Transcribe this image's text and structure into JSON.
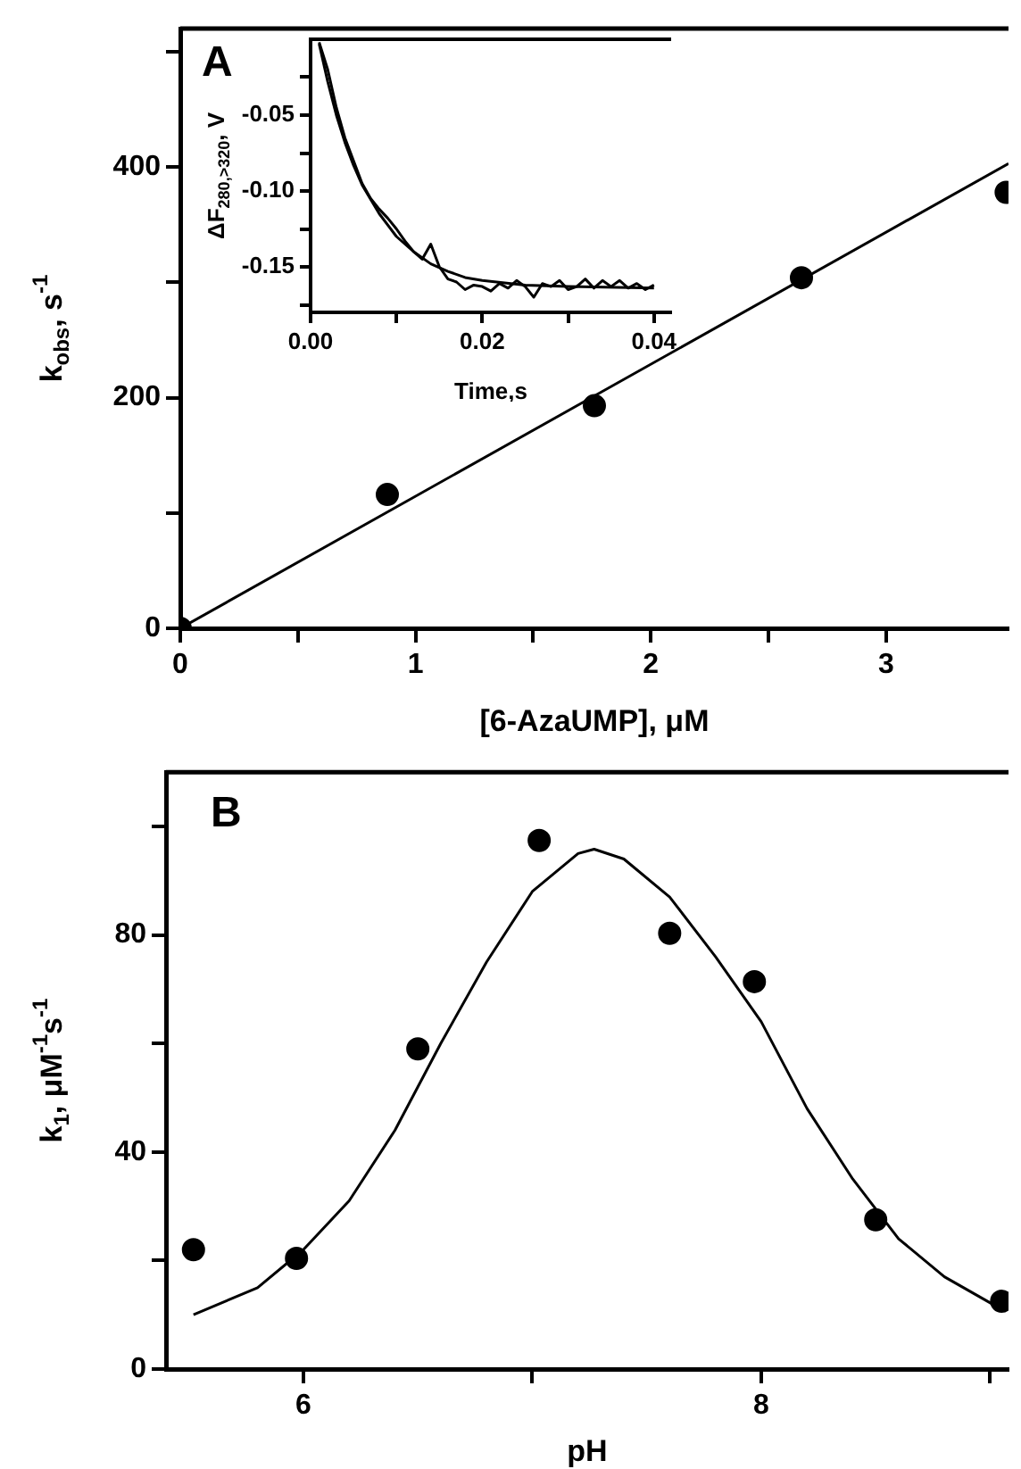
{
  "chart_data": [
    {
      "type": "scatter",
      "xlabel": "[6-AzaUMP], μM",
      "ylabel": "k$_{obs}$, s$^{-1}$",
      "annotations": [
        "A"
      ],
      "xlim": [
        0,
        3.52
      ],
      "ylim": [
        0,
        520
      ],
      "xticks": [
        0,
        {
          "value": 0.5,
          "label": null
        },
        1,
        {
          "value": 1.5,
          "label": null
        },
        2,
        {
          "value": 2.5,
          "label": null
        },
        3
      ],
      "yticks": [
        0,
        {
          "value": 100,
          "label": null
        },
        200,
        {
          "value": 300,
          "label": null
        },
        400,
        {
          "value": 500,
          "label": null
        }
      ],
      "grid": false,
      "legend": false,
      "series": [
        {
          "color": "#000000",
          "marker": "circle",
          "x": [
            0,
            0.88,
            1.76,
            2.64,
            3.51
          ],
          "values": [
            0,
            116,
            193,
            304,
            378
          ]
        },
        {
          "type": "line",
          "color": "#000000",
          "marker": "none",
          "line_style": "solid",
          "x": [
            0,
            3.52
          ],
          "values": [
            0,
            403
          ]
        }
      ]
    },
    {
      "type": "line",
      "xlabel": "Time,s",
      "ylabel": "ΔF$_{280,>320}$, V",
      "xlim": [
        0,
        0.042
      ],
      "ylim": [
        -0.18,
        0
      ],
      "xticks": [
        {
          "value": 0,
          "label": "0.00"
        },
        {
          "value": 0.01,
          "label": null
        },
        0.02,
        {
          "value": 0.03,
          "label": null
        },
        0.04
      ],
      "yticks": [
        {
          "value": -0.175,
          "label": null
        },
        -0.15,
        {
          "value": -0.125,
          "label": null
        },
        {
          "value": -0.1,
          "label": "-0.10"
        },
        {
          "value": -0.075,
          "label": null
        },
        -0.05,
        {
          "value": -0.025,
          "label": null
        }
      ],
      "grid": false,
      "legend": false,
      "series": [
        {
          "color": "#000000",
          "marker": "none",
          "line_style": "solid",
          "x": [
            0.001,
            0.002,
            0.003,
            0.004,
            0.005,
            0.006,
            0.007,
            0.008,
            0.009,
            0.01,
            0.011,
            0.012,
            0.013,
            0.014,
            0.015,
            0.016,
            0.017,
            0.018,
            0.019,
            0.02,
            0.021,
            0.022,
            0.023,
            0.024,
            0.025,
            0.026,
            0.027,
            0.028,
            0.029,
            0.03,
            0.031,
            0.032,
            0.033,
            0.034,
            0.035,
            0.036,
            0.037,
            0.038,
            0.039,
            0.04
          ],
          "values": [
            -0.002,
            -0.02,
            -0.045,
            -0.065,
            -0.08,
            -0.095,
            -0.105,
            -0.112,
            -0.118,
            -0.125,
            -0.133,
            -0.14,
            -0.145,
            -0.135,
            -0.15,
            -0.158,
            -0.16,
            -0.165,
            -0.162,
            -0.163,
            -0.166,
            -0.161,
            -0.164,
            -0.159,
            -0.163,
            -0.17,
            -0.161,
            -0.163,
            -0.159,
            -0.165,
            -0.163,
            -0.158,
            -0.164,
            -0.159,
            -0.163,
            -0.159,
            -0.164,
            -0.161,
            -0.165,
            -0.162
          ]
        },
        {
          "color": "#000000",
          "marker": "none",
          "line_style": "solid",
          "x": [
            0.001,
            0.002,
            0.003,
            0.004,
            0.005,
            0.006,
            0.008,
            0.01,
            0.012,
            0.014,
            0.016,
            0.018,
            0.02,
            0.025,
            0.03,
            0.04
          ],
          "values": [
            -0.003,
            -0.028,
            -0.05,
            -0.068,
            -0.083,
            -0.096,
            -0.115,
            -0.13,
            -0.14,
            -0.148,
            -0.153,
            -0.157,
            -0.159,
            -0.162,
            -0.163,
            -0.164
          ]
        }
      ]
    },
    {
      "type": "scatter",
      "xlabel": "pH",
      "ylabel": "k$_{1}$, μM$^{-1}$s$^{-1}$",
      "annotations": [
        "B"
      ],
      "xlim": [
        5.4,
        9.08
      ],
      "ylim": [
        0,
        110
      ],
      "xticks": [
        6,
        {
          "value": 7,
          "label": null
        },
        8,
        {
          "value": 9,
          "label": null
        }
      ],
      "yticks": [
        0,
        {
          "value": 20,
          "label": null
        },
        40,
        {
          "value": 60,
          "label": null
        },
        80,
        {
          "value": 100,
          "label": null
        }
      ],
      "grid": false,
      "legend": false,
      "series": [
        {
          "color": "#000000",
          "marker": "circle",
          "x": [
            5.52,
            5.97,
            6.5,
            7.03,
            7.6,
            7.97,
            8.5,
            9.05
          ],
          "values": [
            22,
            20.4,
            59,
            97.4,
            80.3,
            71.4,
            27.5,
            12.5
          ]
        },
        {
          "type": "line",
          "color": "#000000",
          "marker": "none",
          "line_style": "solid",
          "x": [
            5.52,
            5.8,
            6.0,
            6.2,
            6.4,
            6.6,
            6.8,
            7.0,
            7.2,
            7.27,
            7.4,
            7.6,
            7.8,
            8.0,
            8.2,
            8.4,
            8.6,
            8.8,
            9.05
          ],
          "values": [
            10,
            15,
            22,
            31,
            44,
            60,
            75,
            88,
            95,
            95.8,
            94,
            87,
            76,
            64,
            48,
            35,
            24,
            17,
            11
          ]
        }
      ]
    }
  ]
}
